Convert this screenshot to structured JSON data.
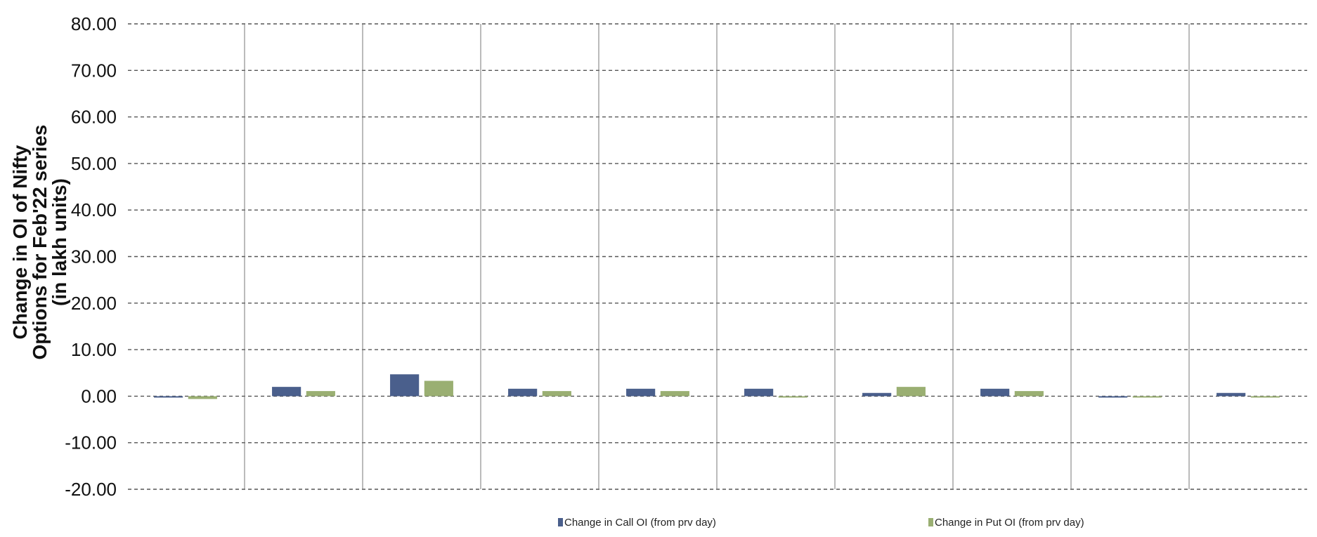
{
  "chart_data": {
    "type": "bar",
    "ylabel_lines": [
      "Change in OI of Nifty",
      "Options for Feb'22 series",
      "(in lakh units)"
    ],
    "ylim": [
      -20,
      80
    ],
    "yticks": [
      "80.00",
      "70.00",
      "60.00",
      "50.00",
      "40.00",
      "30.00",
      "20.00",
      "10.00",
      "0.00",
      "-10.00",
      "-20.00"
    ],
    "ytick_values": [
      80,
      70,
      60,
      50,
      40,
      30,
      20,
      10,
      0,
      -10,
      -20
    ],
    "categories": [
      "",
      "",
      "",
      "",
      "",
      "",
      "",
      "",
      "",
      ""
    ],
    "series": [
      {
        "name": "Change in Call OI (from prv day)",
        "color": "#4a5f8c",
        "values": [
          -0.2,
          2.0,
          4.7,
          1.6,
          1.6,
          1.6,
          0.7,
          1.6,
          -0.2,
          0.7
        ]
      },
      {
        "name": "Change in Put OI (from prv day)",
        "color": "#9aaf72",
        "values": [
          -0.6,
          1.1,
          3.3,
          1.1,
          1.1,
          -0.2,
          2.0,
          1.1,
          -0.2,
          -0.2
        ]
      }
    ],
    "grid": true,
    "legend_position": "bottom"
  }
}
